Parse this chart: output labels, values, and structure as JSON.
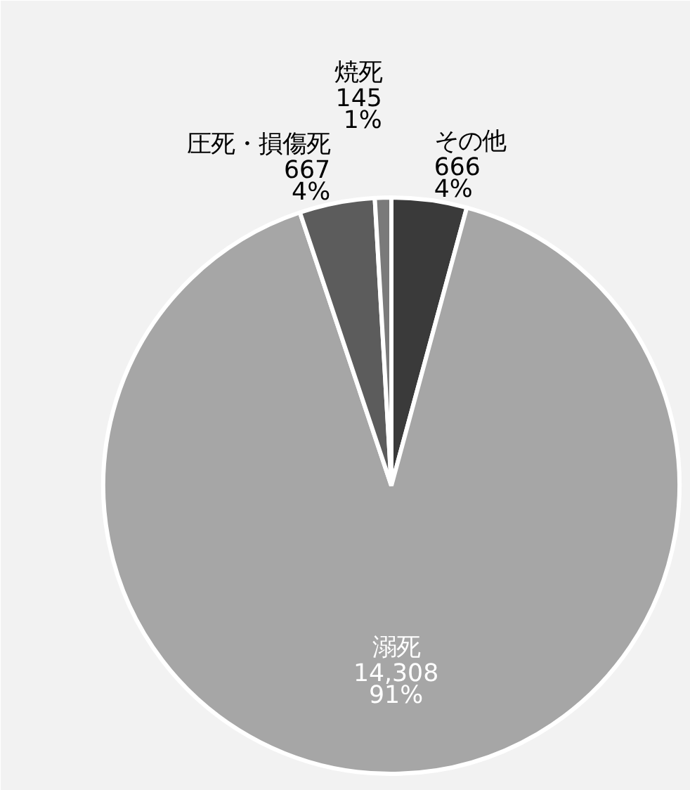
{
  "chart_data": {
    "type": "pie",
    "categories": [
      "その他",
      "溺死",
      "圧死・損傷死",
      "焼死"
    ],
    "values": [
      666,
      14308,
      667,
      145
    ],
    "colors": [
      "#3a3a3a",
      "#a6a6a6",
      "#5c5c5c",
      "#7a7a7a"
    ],
    "value_labels": [
      "666\n4%",
      "14,308\n91%",
      "667\n4%",
      "145\n1%"
    ]
  }
}
